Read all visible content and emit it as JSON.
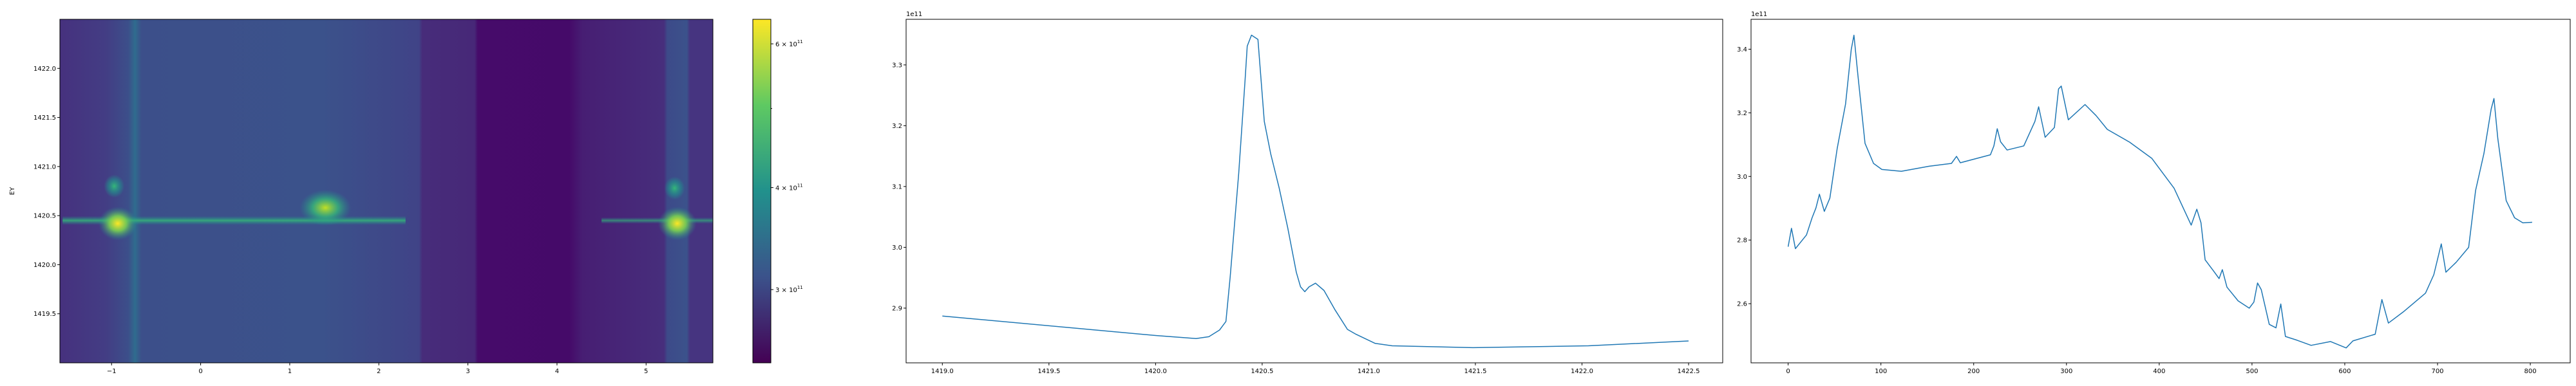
{
  "chart_data": [
    {
      "type": "heatmap",
      "colormap": "viridis",
      "ylabel": "EY",
      "xlabel": "",
      "xlim": [
        -1.58,
        5.75
      ],
      "ylim": [
        1419.0,
        1422.5
      ],
      "xticks": [
        -1,
        0,
        1,
        2,
        3,
        4,
        5
      ],
      "xtick_labels": [
        "−1",
        "0",
        "1",
        "2",
        "3",
        "4",
        "5"
      ],
      "yticks": [
        1419.5,
        1420.0,
        1420.5,
        1421.0,
        1421.5,
        1422.0
      ],
      "ytick_labels": [
        "1419.5",
        "1420.0",
        "1420.5",
        "1421.0",
        "1421.5",
        "1422.0"
      ],
      "colorbar": {
        "scale": "log",
        "range": [
          244000000000.0,
          643000000000.0
        ],
        "ticks": [
          300000000000.0,
          400000000000.0,
          600000000000.0
        ],
        "tick_labels": [
          {
            "mantissa": "3 × 10",
            "exp": "11"
          },
          {
            "mantissa": "4 × 10",
            "exp": "11"
          },
          {
            "mantissa": "6 × 10",
            "exp": "11"
          }
        ],
        "minor_ticks": [
          500000000000.0
        ]
      },
      "hotspots": [
        {
          "x": -0.93,
          "y": 1420.42,
          "level": "max"
        },
        {
          "x": -0.97,
          "y": 1420.8,
          "level": "mid"
        },
        {
          "x": 1.4,
          "y": 1420.58,
          "level": "high"
        },
        {
          "x": 5.35,
          "y": 1420.42,
          "level": "max"
        },
        {
          "x": 5.32,
          "y": 1420.78,
          "level": "mid"
        }
      ]
    },
    {
      "type": "line",
      "color": "#1f77b4",
      "offset_label": "1e11",
      "xlim": [
        1418.83,
        1422.66
      ],
      "ylim": [
        2.81,
        3.375
      ],
      "xticks": [
        1419.0,
        1419.5,
        1420.0,
        1420.5,
        1421.0,
        1421.5,
        1422.0,
        1422.5
      ],
      "xtick_labels": [
        "1419.0",
        "1419.5",
        "1420.0",
        "1420.5",
        "1421.0",
        "1421.5",
        "1422.0",
        "1422.5"
      ],
      "yticks": [
        2.9,
        3.0,
        3.1,
        3.2,
        3.3
      ],
      "ytick_labels": [
        "2.9",
        "3.0",
        "3.1",
        "3.2",
        "3.3"
      ],
      "x": [
        1419.0,
        1420.0,
        1420.19,
        1420.25,
        1420.3,
        1420.33,
        1420.35,
        1420.39,
        1420.42,
        1420.43,
        1420.45,
        1420.48,
        1420.51,
        1420.54,
        1420.58,
        1420.62,
        1420.66,
        1420.68,
        1420.7,
        1420.72,
        1420.75,
        1420.79,
        1420.84,
        1420.9,
        1420.94,
        1421.03,
        1421.11,
        1421.49,
        1422.03,
        1422.5
      ],
      "y": [
        2.887,
        2.855,
        2.85,
        2.853,
        2.864,
        2.878,
        2.951,
        3.122,
        3.276,
        3.331,
        3.349,
        3.342,
        3.207,
        3.154,
        3.097,
        3.032,
        2.959,
        2.935,
        2.927,
        2.935,
        2.941,
        2.929,
        2.898,
        2.865,
        2.857,
        2.842,
        2.838,
        2.835,
        2.838,
        2.846
      ]
    },
    {
      "type": "line",
      "color": "#1f77b4",
      "offset_label": "1e11",
      "xlim": [
        -40,
        843
      ],
      "ylim": [
        2.414,
        3.494
      ],
      "xticks": [
        0,
        100,
        200,
        300,
        400,
        500,
        600,
        700,
        800
      ],
      "xtick_labels": [
        "0",
        "100",
        "200",
        "300",
        "400",
        "500",
        "600",
        "700",
        "800"
      ],
      "yticks": [
        2.6,
        2.8,
        3.0,
        3.2,
        3.4
      ],
      "ytick_labels": [
        "2.6",
        "2.8",
        "3.0",
        "3.2",
        "3.4"
      ],
      "x": [
        0,
        3.6,
        7.8,
        19.8,
        25.8,
        30,
        33.7,
        39,
        45,
        52.9,
        61.9,
        68,
        70.9,
        75.1,
        82.9,
        92,
        101,
        122,
        152,
        176,
        181.5,
        185.6,
        218,
        221.8,
        225.4,
        229,
        236,
        254,
        266,
        270,
        277,
        287,
        291.5,
        294.4,
        302,
        320,
        332,
        344,
        368,
        392,
        416,
        434.5,
        440.5,
        445,
        449.5,
        458.5,
        464.5,
        468,
        473,
        485,
        497,
        502,
        506,
        510,
        518.6,
        525.8,
        531,
        536,
        548.7,
        563.7,
        584.7,
        601.5,
        608.8,
        632.8,
        640,
        647,
        663,
        687,
        696,
        704,
        709,
        720,
        733.5,
        741,
        750,
        757.8,
        760.8,
        765,
        774,
        783,
        792,
        802
      ],
      "y": [
        2.779,
        2.837,
        2.773,
        2.816,
        2.87,
        2.901,
        2.944,
        2.89,
        2.932,
        3.088,
        3.228,
        3.399,
        3.444,
        3.321,
        3.104,
        3.041,
        3.022,
        3.016,
        3.032,
        3.041,
        3.063,
        3.043,
        3.068,
        3.096,
        3.15,
        3.109,
        3.083,
        3.096,
        3.173,
        3.219,
        3.123,
        3.154,
        3.275,
        3.284,
        3.178,
        3.226,
        3.191,
        3.148,
        3.108,
        3.057,
        2.963,
        2.847,
        2.897,
        2.854,
        2.738,
        2.703,
        2.679,
        2.707,
        2.652,
        2.609,
        2.586,
        2.605,
        2.665,
        2.644,
        2.535,
        2.524,
        2.599,
        2.497,
        2.485,
        2.469,
        2.481,
        2.461,
        2.483,
        2.504,
        2.613,
        2.539,
        2.574,
        2.633,
        2.691,
        2.788,
        2.699,
        2.73,
        2.777,
        2.956,
        3.072,
        3.212,
        3.245,
        3.119,
        2.924,
        2.87,
        2.854,
        2.856
      ]
    }
  ]
}
